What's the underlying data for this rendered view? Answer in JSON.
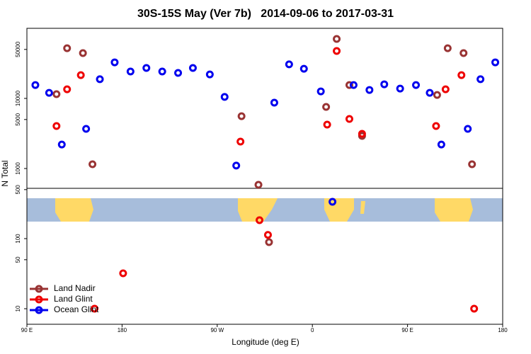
{
  "chart_data": {
    "type": "scatter",
    "title": "30S-15S May (Ver 7b)   2014-09-06 to 2017-03-31",
    "x_label": "Longitude (deg E)",
    "y_label": "N Total",
    "log_y": true,
    "legend_position": "lower left",
    "xlim": [
      90,
      540
    ],
    "xticks": [
      {
        "value": 90,
        "label": "90 E"
      },
      180,
      {
        "value": 270,
        "label": "90 W"
      },
      {
        "value": 360,
        "label": "0"
      },
      {
        "value": 450,
        "label": "90 E"
      },
      {
        "value": 540,
        "label": "180"
      }
    ],
    "ylim": [
      6,
      100000
    ],
    "yticks": [
      10,
      50,
      100,
      500,
      1000,
      5000,
      10000,
      50000
    ],
    "series": [
      {
        "name": "Land Nadir",
        "color": "#993333",
        "x": [
          118,
          128,
          143,
          152,
          293,
          309,
          319,
          373,
          383,
          395,
          407,
          478,
          488,
          503,
          511
        ],
        "values": [
          11500,
          52000,
          44300,
          1150,
          5580,
          586,
          89,
          7570,
          70500,
          15500,
          2920,
          11200,
          52000,
          44300,
          1150
        ]
      },
      {
        "name": "Land Glint",
        "color": "#ee0000",
        "x": [
          118,
          128,
          141,
          154,
          181,
          292,
          310,
          318,
          374,
          383,
          395,
          407,
          477,
          486,
          501,
          513
        ],
        "values": [
          4040,
          13500,
          21500,
          10,
          32,
          2420,
          183,
          113,
          4230,
          47500,
          5090,
          3130,
          4040,
          13500,
          21500,
          10
        ]
      },
      {
        "name": "Ocean Glint",
        "color": "#0000ee",
        "x": [
          98,
          111,
          123,
          146,
          159,
          173,
          188,
          203,
          218,
          233,
          247,
          263,
          277,
          288,
          324,
          338,
          352,
          368,
          379,
          399,
          414,
          428,
          443,
          458,
          471,
          482,
          507,
          519,
          533
        ],
        "values": [
          15500,
          12000,
          2200,
          3680,
          18800,
          32700,
          24200,
          27200,
          24200,
          23100,
          27200,
          22000,
          10500,
          1100,
          8700,
          30600,
          26500,
          12600,
          335,
          15500,
          13200,
          15900,
          13800,
          15500,
          12000,
          2200,
          3680,
          18800,
          32700
        ]
      }
    ]
  }
}
